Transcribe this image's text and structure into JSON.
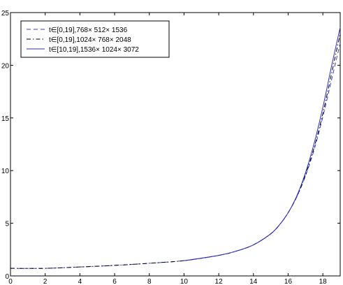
{
  "chart_data": {
    "type": "line",
    "xlim": [
      0,
      19
    ],
    "ylim": [
      0,
      25
    ],
    "xticks": [
      0,
      2,
      4,
      6,
      8,
      10,
      12,
      14,
      16,
      18
    ],
    "yticks": [
      0,
      5,
      10,
      15,
      20,
      25
    ],
    "grid": false,
    "legend_position": "top-left",
    "series": [
      {
        "name": "t∈[0,19],768× 512× 1536",
        "style": "dashed",
        "color": "#3b3bd6",
        "x": [
          0,
          2,
          4,
          6,
          8,
          10,
          12,
          13,
          14,
          15,
          15.5,
          16,
          16.5,
          17,
          17.5,
          18,
          18.5,
          19
        ],
        "y": [
          0.72,
          0.72,
          0.85,
          1.0,
          1.2,
          1.45,
          1.95,
          2.35,
          2.95,
          4.0,
          4.85,
          6.0,
          7.5,
          9.5,
          12.0,
          15.1,
          18.6,
          22.1
        ]
      },
      {
        "name": "t∈[0,19],1024× 768× 2048",
        "style": "dashdot",
        "color": "#000000",
        "x": [
          0,
          2,
          4,
          6,
          8,
          10,
          12,
          13,
          14,
          15,
          15.5,
          16,
          16.5,
          17,
          17.5,
          18,
          18.5,
          19
        ],
        "y": [
          0.72,
          0.72,
          0.85,
          1.0,
          1.2,
          1.45,
          1.95,
          2.35,
          2.95,
          4.0,
          4.85,
          6.0,
          7.55,
          9.6,
          12.2,
          15.4,
          19.2,
          23.0
        ]
      },
      {
        "name": "t∈[10,19],1536× 1024× 3072",
        "style": "solid",
        "color": "#2a2ac8",
        "x": [
          10,
          12,
          13,
          14,
          15,
          15.5,
          16,
          16.5,
          17,
          17.5,
          18,
          18.5,
          19
        ],
        "y": [
          1.45,
          1.95,
          2.35,
          2.95,
          4.0,
          4.85,
          6.0,
          7.6,
          9.8,
          12.6,
          16.0,
          19.9,
          23.6
        ]
      }
    ]
  }
}
